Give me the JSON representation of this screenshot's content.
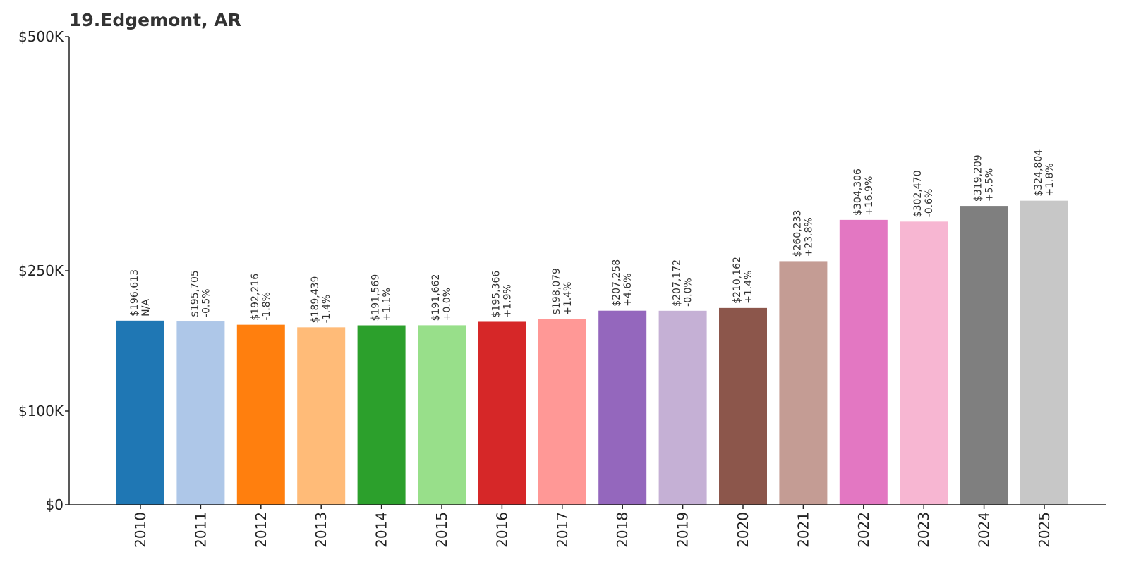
{
  "chart_data": {
    "type": "bar",
    "title": "19.Edgemont, AR",
    "xlabel": "",
    "ylabel": "",
    "y_scale": "piecewise-linear",
    "ylim": [
      0,
      500000
    ],
    "yticks": [
      0,
      100000,
      250000,
      500000
    ],
    "ytick_labels": [
      "$0",
      "$100K",
      "$250K",
      "$500K"
    ],
    "grid": false,
    "legend": "none",
    "categories": [
      "2010",
      "2011",
      "2012",
      "2013",
      "2014",
      "2015",
      "2016",
      "2017",
      "2018",
      "2019",
      "2020",
      "2021",
      "2022",
      "2023",
      "2024",
      "2025"
    ],
    "values": [
      196613,
      195705,
      192216,
      189439,
      191569,
      191662,
      195366,
      198079,
      207258,
      207172,
      210162,
      260233,
      304306,
      302470,
      319209,
      324804
    ],
    "value_labels": [
      "$196,613",
      "$195,705",
      "$192,216",
      "$189,439",
      "$191,569",
      "$191,662",
      "$195,366",
      "$198,079",
      "$207,258",
      "$207,172",
      "$210,162",
      "$260,233",
      "$304,306",
      "$302,470",
      "$319,209",
      "$324,804"
    ],
    "change_labels": [
      "N/A",
      "-0.5%",
      "-1.8%",
      "-1.4%",
      "+1.1%",
      "+0.0%",
      "+1.9%",
      "+1.4%",
      "+4.6%",
      "-0.0%",
      "+1.4%",
      "+23.8%",
      "+16.9%",
      "-0.6%",
      "+5.5%",
      "+1.8%"
    ],
    "colors": [
      "#1f77b4",
      "#aec7e8",
      "#ff7f0e",
      "#ffbb78",
      "#2ca02c",
      "#98df8a",
      "#d62728",
      "#ff9896",
      "#9467bd",
      "#c5b0d5",
      "#8c564b",
      "#c49c94",
      "#e377c2",
      "#f7b6d2",
      "#7f7f7f",
      "#c7c7c7"
    ]
  }
}
